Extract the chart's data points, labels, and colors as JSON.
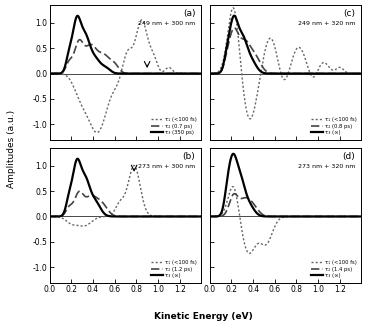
{
  "title_a": "249 nm + 300 nm",
  "title_b": "273 nm + 300 nm",
  "title_c": "249 nm + 320 nm",
  "title_d": "273 nm + 320 nm",
  "xlabel": "Kinetic Energy (eV)",
  "ylabel": "Amplitudes (a.u.)",
  "xlim": [
    0.0,
    1.4
  ],
  "ylim": [
    -1.3,
    1.35
  ],
  "xticks": [
    0.0,
    0.2,
    0.4,
    0.6,
    0.8,
    1.0,
    1.2,
    1.4
  ],
  "yticks": [
    -1.0,
    -0.5,
    0.0,
    0.5,
    1.0
  ],
  "legend_a": [
    "τ₁ (<100 fs)",
    "τ₂ (0.7 ps)",
    "τ₃ (350 ps)"
  ],
  "legend_b": [
    "τ₁ (<100 fs)",
    "τ₂ (1.2 ps)",
    "τ₃ (∞)"
  ],
  "legend_c": [
    "τ₁ (<100 fs)",
    "τ₂ (0.8 ps)",
    "τ₃ (∞)"
  ],
  "legend_d": [
    "τ₁ (<100 fs)",
    "τ₂ (1.4 ps)",
    "τ₃ (∞)"
  ]
}
